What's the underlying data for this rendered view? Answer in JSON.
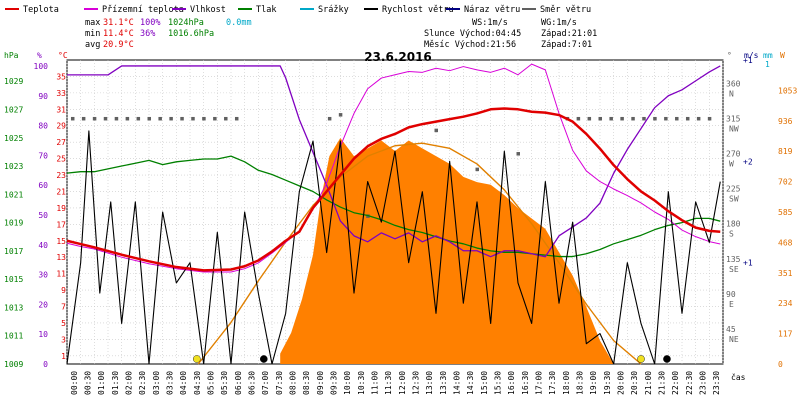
{
  "chart_data": {
    "type": "line",
    "title": "23.6.2016",
    "xlabel": "čas",
    "legend": [
      {
        "name": "Teplota",
        "color": "#e00000"
      },
      {
        "name": "Přízemní teplota",
        "color": "#d800d8"
      },
      {
        "name": "Vlhkost",
        "color": "#8000c0"
      },
      {
        "name": "Tlak",
        "color": "#008000"
      },
      {
        "name": "Srážky",
        "color": "#00a8c8"
      },
      {
        "name": "Rychlost větru",
        "color": "#000000"
      },
      {
        "name": "Náraz větru",
        "color": "#000080"
      },
      {
        "name": "Směr větru",
        "color": "#606060"
      }
    ],
    "stats": {
      "max_label": "max",
      "max_temp": "31.1°C",
      "max_hum": "100%",
      "max_press": "1024hPa",
      "max_rain": "0.0mm",
      "min_label": "min",
      "min_temp": "11.4°C",
      "min_hum": "36%",
      "min_press": "1016.6hPa",
      "avg_label": "avg",
      "avg_temp": "20.9°C"
    },
    "info": {
      "ws": "WS:1m/s",
      "wg": "WG:1m/s",
      "sun": "Slunce Východ:04:45",
      "sun_set": "Západ:21:01",
      "moon": "Měsíc  Východ:21:56",
      "moon_set": "Západ:7:01"
    },
    "axis_units": {
      "press": "hPa",
      "hum": "%",
      "temp": "°C",
      "dir": "°",
      "wind": "m/s",
      "rain": "mm",
      "solar": "W"
    },
    "axes": {
      "press_ticks": [
        "1029",
        "1027",
        "1025",
        "1023",
        "1021",
        "1019",
        "1017",
        "1015",
        "1013",
        "1011",
        "1009"
      ],
      "hum_ticks": [
        "100",
        "90",
        "80",
        "70",
        "60",
        "50",
        "40",
        "30",
        "20",
        "10",
        "0"
      ],
      "temp_ticks": [
        "35",
        "33",
        "31",
        "29",
        "27",
        "25",
        "23",
        "21",
        "19",
        "17",
        "15",
        "13",
        "11",
        "9",
        "7",
        "5",
        "3",
        "1"
      ],
      "dir_ticks": [
        "360 N",
        "315 NW",
        "270 W",
        "225 SW",
        "180 S",
        "135 SE",
        "90 E",
        "45 NE"
      ],
      "wind_ticks": [
        "1",
        "2",
        "1"
      ],
      "rain_ticks": [
        "1"
      ],
      "solar_ticks": [
        "1053",
        "936",
        "819",
        "702",
        "585",
        "468",
        "351",
        "234",
        "117",
        "0"
      ],
      "x_ticks": [
        "00:00",
        "00:30",
        "01:00",
        "01:30",
        "02:00",
        "02:30",
        "03:00",
        "03:30",
        "04:00",
        "04:30",
        "05:00",
        "05:30",
        "06:00",
        "06:30",
        "07:00",
        "07:30",
        "08:00",
        "08:30",
        "09:00",
        "09:30",
        "10:00",
        "10:30",
        "11:00",
        "11:30",
        "12:00",
        "12:30",
        "13:00",
        "13:30",
        "14:00",
        "14:30",
        "15:00",
        "15:30",
        "16:00",
        "16:30",
        "17:00",
        "17:30",
        "18:00",
        "18:30",
        "19:00",
        "19:30",
        "20:00",
        "20:30",
        "21:00",
        "21:30",
        "22:00",
        "22:30",
        "23:00",
        "23:30"
      ]
    },
    "ranges": {
      "x": [
        0,
        24
      ],
      "temp": [
        0,
        37
      ],
      "hum": [
        0,
        102
      ],
      "press": [
        1009,
        1030.5
      ],
      "dir": [
        0,
        390
      ],
      "wind": [
        0,
        3
      ],
      "solar": [
        0,
        1170
      ]
    },
    "series": {
      "temperature": {
        "x": [
          0,
          0.5,
          1,
          2,
          3,
          4,
          5,
          6,
          6.5,
          7,
          7.5,
          8,
          8.5,
          9,
          9.5,
          10,
          10.5,
          11,
          11.5,
          12,
          12.5,
          13,
          13.5,
          14,
          14.5,
          15,
          15.5,
          16,
          16.5,
          17,
          17.5,
          18,
          18.5,
          19,
          19.5,
          20,
          20.5,
          21,
          21.5,
          22,
          22.5,
          23,
          23.5,
          23.9
        ],
        "y": [
          15,
          14.6,
          14.2,
          13.3,
          12.5,
          11.8,
          11.4,
          11.5,
          11.9,
          12.6,
          13.7,
          15,
          16.1,
          19,
          21,
          23,
          25,
          26.5,
          27.4,
          28,
          28.8,
          29.2,
          29.5,
          29.8,
          30.1,
          30.5,
          31,
          31.1,
          31,
          30.7,
          30.6,
          30.3,
          29.5,
          28,
          26.2,
          24.2,
          22.5,
          21,
          19.9,
          18.6,
          17.5,
          16.6,
          16.2,
          16.1
        ]
      },
      "ground_temperature": {
        "x": [
          0,
          0.5,
          1,
          2,
          3,
          4,
          5,
          6,
          6.5,
          7,
          7.5,
          8,
          8.5,
          9,
          9.5,
          10,
          10.5,
          11,
          11.5,
          12,
          12.5,
          13,
          13.5,
          14,
          14.5,
          15,
          15.5,
          16,
          16.5,
          17,
          17.5,
          18,
          18.5,
          19,
          19.5,
          20,
          20.5,
          21,
          21.5,
          22,
          22.5,
          23,
          23.5,
          23.9
        ],
        "y": [
          14.7,
          14.3,
          14,
          13,
          12.2,
          11.6,
          11.2,
          11.2,
          11.6,
          12.3,
          13.5,
          14.8,
          16.2,
          18.8,
          22,
          26.5,
          30.5,
          33.5,
          34.8,
          35.2,
          35.6,
          35.5,
          36,
          35.7,
          36.2,
          35.8,
          35.5,
          36,
          35.2,
          36.5,
          35.8,
          30.5,
          26,
          23.5,
          22.2,
          21.3,
          20.5,
          19.6,
          18.5,
          17.6,
          16.3,
          15.5,
          14.9,
          14.6
        ]
      },
      "humidity": {
        "x": [
          0,
          0.5,
          1,
          1.5,
          2,
          3,
          4,
          5,
          6,
          6.5,
          7,
          7.5,
          7.8,
          8,
          8.5,
          9,
          9.5,
          10,
          10.5,
          11,
          11.5,
          12,
          12.5,
          13,
          13.5,
          14,
          14.5,
          15,
          15.5,
          16,
          16.5,
          17,
          17.5,
          18,
          18.5,
          19,
          19.5,
          20,
          20.5,
          21,
          21.5,
          22,
          22.5,
          23,
          23.5,
          23.9
        ],
        "y": [
          97,
          97,
          97,
          97,
          100,
          100,
          100,
          100,
          100,
          100,
          100,
          100,
          100,
          96,
          82,
          71,
          60,
          48,
          43,
          41,
          44,
          42,
          44,
          41,
          43,
          41,
          38,
          38,
          36,
          38,
          38,
          37,
          36,
          43,
          46,
          49,
          54,
          64,
          72,
          79,
          86,
          90,
          92,
          95,
          98,
          100
        ]
      },
      "pressure": {
        "x": [
          0,
          0.5,
          1,
          1.5,
          2,
          2.5,
          3,
          3.5,
          4,
          4.5,
          5,
          5.5,
          6,
          6.5,
          7,
          7.5,
          8,
          8.5,
          9,
          9.5,
          10,
          10.5,
          11,
          11.5,
          12,
          12.5,
          13,
          13.5,
          14,
          14.5,
          15,
          15.5,
          16,
          16.5,
          17,
          17.5,
          18,
          18.5,
          19,
          19.5,
          20,
          20.5,
          21,
          21.5,
          22,
          22.5,
          23,
          23.5,
          23.9
        ],
        "y": [
          1022.5,
          1022.6,
          1022.6,
          1022.8,
          1023,
          1023.2,
          1023.4,
          1023.1,
          1023.3,
          1023.4,
          1023.5,
          1023.5,
          1023.7,
          1023.3,
          1022.7,
          1022.4,
          1022,
          1021.6,
          1021.2,
          1020.6,
          1020.1,
          1019.7,
          1019.5,
          1019.2,
          1018.8,
          1018.5,
          1018.3,
          1018,
          1017.7,
          1017.5,
          1017.2,
          1017,
          1016.9,
          1016.9,
          1016.8,
          1016.7,
          1016.6,
          1016.6,
          1016.8,
          1017.1,
          1017.5,
          1017.8,
          1018.1,
          1018.5,
          1018.8,
          1019,
          1019.3,
          1019.3,
          1019.1
        ]
      },
      "wind_speed": {
        "x": [
          0,
          0.5,
          0.8,
          1.2,
          1.6,
          2,
          2.5,
          3,
          3.5,
          4,
          4.5,
          5,
          5.5,
          6,
          6.5,
          7,
          7.5,
          8,
          8.5,
          9,
          9.5,
          10,
          10.5,
          11,
          11.5,
          12,
          12.5,
          13,
          13.5,
          14,
          14.5,
          15,
          15.5,
          16,
          16.5,
          17,
          17.5,
          18,
          18.5,
          19,
          19.5,
          20,
          20.5,
          21,
          21.5,
          22,
          22.5,
          23,
          23.5,
          23.9
        ],
        "y": [
          0,
          1,
          2.3,
          0.7,
          1.6,
          0.4,
          1.6,
          0,
          1.5,
          0.8,
          1,
          0,
          1.3,
          0,
          1.5,
          0.7,
          0,
          0.5,
          1.7,
          2.2,
          1.1,
          2.2,
          0.7,
          1.8,
          1.4,
          2.1,
          1,
          1.7,
          0.5,
          2,
          0.6,
          1.6,
          0.4,
          2.1,
          0.8,
          0.4,
          1.8,
          0.6,
          1.4,
          0.2,
          0.3,
          0,
          1,
          0.4,
          0,
          1.7,
          0.5,
          1.6,
          1.2,
          1.8
        ]
      },
      "solar": {
        "x": [
          7.8,
          8.2,
          8.6,
          9,
          9.3,
          9.6,
          10,
          10.5,
          11,
          11.5,
          12,
          12.5,
          13,
          13.5,
          14,
          14.5,
          15,
          15.5,
          16,
          16.5,
          17,
          17.5,
          18,
          18.5,
          19,
          19.5,
          20
        ],
        "y": [
          40,
          120,
          250,
          420,
          640,
          800,
          870,
          800,
          830,
          860,
          820,
          860,
          830,
          800,
          770,
          720,
          700,
          690,
          650,
          600,
          560,
          520,
          430,
          340,
          220,
          90,
          0
        ]
      },
      "solar_theoretical": {
        "x": [
          4.8,
          6,
          7,
          8,
          9,
          10,
          11,
          12,
          13,
          14,
          15,
          16,
          17,
          18,
          19,
          20,
          21
        ],
        "y": [
          0,
          160,
          320,
          470,
          610,
          720,
          800,
          840,
          850,
          830,
          770,
          670,
          540,
          390,
          230,
          90,
          0
        ]
      },
      "wind_direction": {
        "x": [
          0.2,
          0.6,
          1,
          1.4,
          1.8,
          2.2,
          2.6,
          3,
          3.4,
          3.8,
          4.2,
          4.6,
          5,
          5.4,
          5.8,
          6.2,
          9.6,
          10,
          11,
          13.5,
          15,
          16.5,
          18.3,
          18.7,
          19.1,
          19.5,
          19.9,
          20.3,
          20.7,
          21.1,
          21.5,
          21.9,
          22.3,
          22.7,
          23.1,
          23.5
        ],
        "y": [
          315,
          315,
          315,
          315,
          315,
          315,
          315,
          315,
          315,
          315,
          315,
          315,
          315,
          315,
          315,
          315,
          315,
          320,
          190,
          300,
          250,
          270,
          315,
          315,
          315,
          315,
          315,
          315,
          315,
          315,
          315,
          315,
          315,
          315,
          315,
          315
        ]
      },
      "sun_markers": [
        {
          "x": 4.75,
          "color": "#f0e020"
        },
        {
          "x": 7.2,
          "color": "#000000"
        },
        {
          "x": 21.0,
          "color": "#f0e020"
        },
        {
          "x": 21.95,
          "color": "#000000"
        }
      ]
    }
  }
}
